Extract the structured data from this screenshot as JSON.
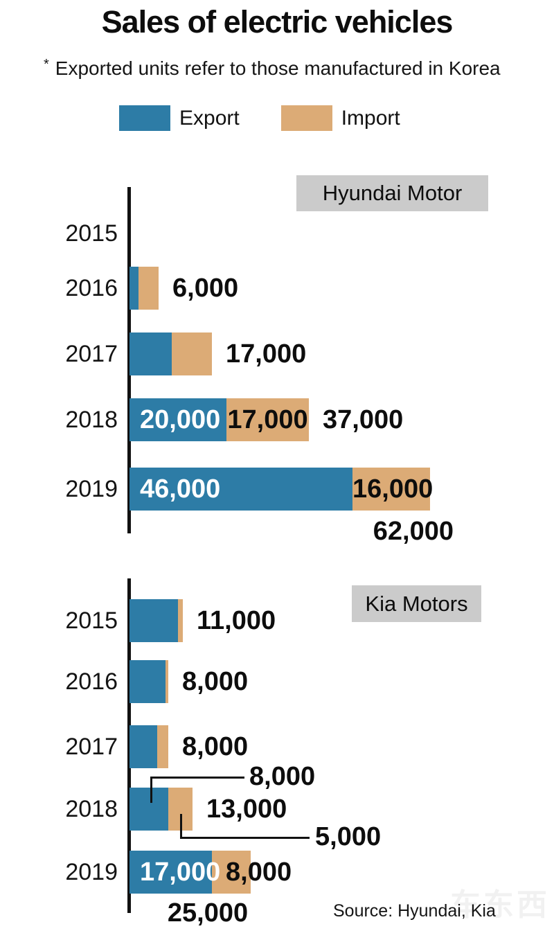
{
  "page": {
    "title": "Sales of electric vehicles",
    "footnote_marker": "*",
    "footnote": "Exported units refer to those manufactured in Korea",
    "source": "Source: Hyundai, Kia",
    "watermark": "车东西"
  },
  "legend": {
    "export_label": "Export",
    "import_label": "Import"
  },
  "colors": {
    "export": "#2d7ca6",
    "import": "#dcab76",
    "section_label_bg": "#cbcbcb",
    "axis": "#111111",
    "value_on_export": "#ffffff"
  },
  "chart_data": [
    {
      "type": "bar",
      "orientation": "horizontal",
      "stacked": true,
      "title": "Hyundai Motor",
      "categories": [
        "2015",
        "2016",
        "2017",
        "2018",
        "2019"
      ],
      "series": [
        {
          "name": "Export",
          "values": [
            0,
            1800,
            8700,
            20000,
            46000
          ]
        },
        {
          "name": "Import",
          "values": [
            0,
            4200,
            8300,
            17000,
            16000
          ]
        }
      ],
      "totals": [
        0,
        6000,
        17000,
        37000,
        62000
      ],
      "labels": [
        [],
        [
          {
            "text": "6,000",
            "pos": "right"
          }
        ],
        [
          {
            "text": "17,000",
            "pos": "right"
          }
        ],
        [
          {
            "text": "20,000",
            "pos": "in-export"
          },
          {
            "text": "17,000",
            "pos": "in-import"
          },
          {
            "text": "37,000",
            "pos": "right"
          }
        ],
        [
          {
            "text": "46,000",
            "pos": "in-export"
          },
          {
            "text": "16,000",
            "pos": "in-import"
          },
          {
            "text": "62,000",
            "pos": "below-right"
          }
        ]
      ]
    },
    {
      "type": "bar",
      "orientation": "horizontal",
      "stacked": true,
      "title": "Kia Motors",
      "categories": [
        "2015",
        "2016",
        "2017",
        "2018",
        "2019"
      ],
      "series": [
        {
          "name": "Export",
          "values": [
            10000,
            7400,
            5700,
            8000,
            17000
          ]
        },
        {
          "name": "Import",
          "values": [
            1000,
            600,
            2300,
            5000,
            8000
          ]
        }
      ],
      "totals": [
        11000,
        8000,
        8000,
        13000,
        25000
      ],
      "labels": [
        [
          {
            "text": "11,000",
            "pos": "right"
          }
        ],
        [
          {
            "text": "8,000",
            "pos": "right"
          }
        ],
        [
          {
            "text": "8,000",
            "pos": "right"
          }
        ],
        [
          {
            "text": "8,000",
            "pos": "callout-above"
          },
          {
            "text": "13,000",
            "pos": "right"
          },
          {
            "text": "5,000",
            "pos": "callout-below"
          }
        ],
        [
          {
            "text": "17,000",
            "pos": "in-export"
          },
          {
            "text": "8,000",
            "pos": "in-import-left"
          },
          {
            "text": "25,000",
            "pos": "below-center"
          }
        ]
      ]
    }
  ]
}
